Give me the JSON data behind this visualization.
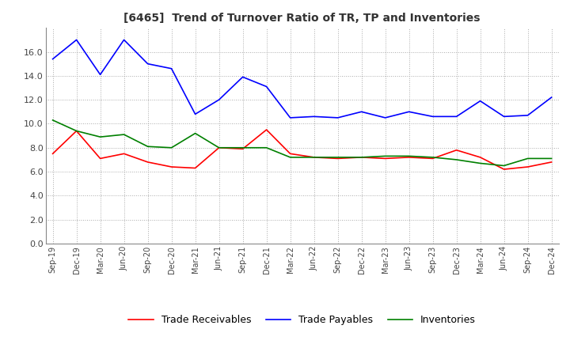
{
  "title": "[6465]  Trend of Turnover Ratio of TR, TP and Inventories",
  "x_labels": [
    "Sep-19",
    "Dec-19",
    "Mar-20",
    "Jun-20",
    "Sep-20",
    "Dec-20",
    "Mar-21",
    "Jun-21",
    "Sep-21",
    "Dec-21",
    "Mar-22",
    "Jun-22",
    "Sep-22",
    "Dec-22",
    "Mar-23",
    "Jun-23",
    "Sep-23",
    "Dec-23",
    "Mar-24",
    "Jun-24",
    "Sep-24",
    "Dec-24"
  ],
  "trade_receivables": [
    7.5,
    9.4,
    7.1,
    7.5,
    6.8,
    6.4,
    6.3,
    8.0,
    7.9,
    9.5,
    7.5,
    7.2,
    7.1,
    7.2,
    7.1,
    7.2,
    7.1,
    7.8,
    7.2,
    6.2,
    6.4,
    6.8
  ],
  "trade_payables": [
    15.4,
    17.0,
    14.1,
    17.0,
    15.0,
    14.6,
    10.8,
    12.0,
    13.9,
    13.1,
    10.5,
    10.6,
    10.5,
    11.0,
    10.5,
    11.0,
    10.6,
    10.6,
    11.9,
    10.6,
    10.7,
    12.2
  ],
  "inventories": [
    10.3,
    9.4,
    8.9,
    9.1,
    8.1,
    8.0,
    9.2,
    8.0,
    8.0,
    8.0,
    7.2,
    7.2,
    7.2,
    7.2,
    7.3,
    7.3,
    7.2,
    7.0,
    6.7,
    6.5,
    7.1,
    7.1
  ],
  "ylim": [
    0.0,
    18.0
  ],
  "yticks": [
    0.0,
    2.0,
    4.0,
    6.0,
    8.0,
    10.0,
    12.0,
    14.0,
    16.0
  ],
  "color_tr": "#ff0000",
  "color_tp": "#0000ff",
  "color_inv": "#008000",
  "legend_labels": [
    "Trade Receivables",
    "Trade Payables",
    "Inventories"
  ],
  "background_color": "#ffffff",
  "grid_color": "#aaaaaa"
}
